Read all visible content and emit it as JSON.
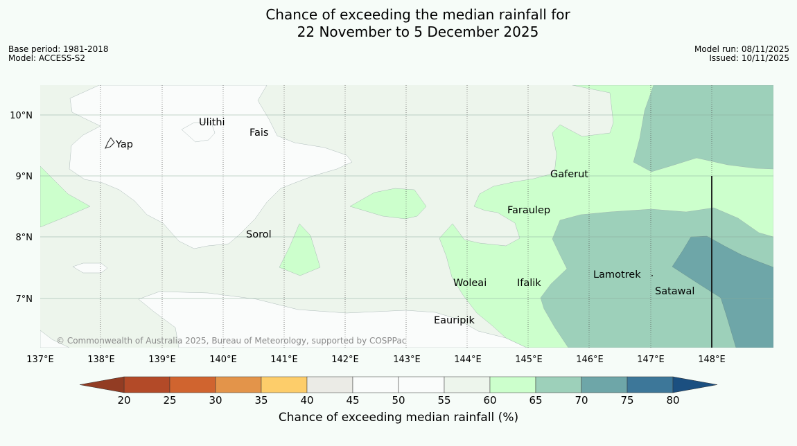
{
  "title_line1": "Chance of exceeding the median rainfall for",
  "title_line2": "22 November to 5 December 2025",
  "base_period": "Base period: 1981-2018",
  "model": "Model: ACCESS-S2",
  "model_run": "Model run: 08/11/2025",
  "issued": "Issued: 10/11/2025",
  "copyright": "© Commonwealth of Australia 2025, Bureau of Meteorology, supported by COSPPac",
  "lon_labels": [
    "137°E",
    "138°E",
    "139°E",
    "140°E",
    "141°E",
    "142°E",
    "143°E",
    "144°E",
    "145°E",
    "146°E",
    "147°E",
    "148°E"
  ],
  "lat_labels": [
    "10°N",
    "9°N",
    "8°N",
    "7°N"
  ],
  "places": [
    "Ulithi",
    "Fais",
    "Yap",
    "Gaferut",
    "Faraulep",
    "Sorol",
    "Lamotrek",
    "Woleai",
    "Ifalik",
    "Satawal",
    "Eauripik"
  ],
  "legend": {
    "title": "Chance of exceeding median rainfall (%)",
    "ticks": [
      "20",
      "25",
      "30",
      "35",
      "40",
      "45",
      "50",
      "55",
      "60",
      "65",
      "70",
      "75",
      "80"
    ],
    "colors": [
      "#b34a28",
      "#d0642f",
      "#e3944a",
      "#fdcd6a",
      "#ebebe6",
      "#fafcfb",
      "#fafcfb",
      "#edf5ec",
      "#ccffcc",
      "#9dd0ba",
      "#6ea6a8",
      "#3d7799"
    ],
    "under_color": "#923c23",
    "over_color": "#1b4f80"
  }
}
